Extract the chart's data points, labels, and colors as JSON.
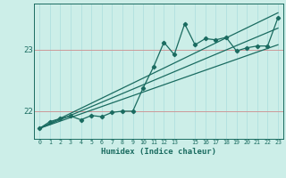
{
  "xlabel": "Humidex (Indice chaleur)",
  "bg_color": "#cceee8",
  "line_color": "#1a6b60",
  "grid_h_color": "#cc9999",
  "grid_v_color": "#aadddd",
  "xlim": [
    -0.5,
    23.5
  ],
  "ylim": [
    21.55,
    23.75
  ],
  "yticks": [
    22,
    23
  ],
  "xticks": [
    0,
    1,
    2,
    3,
    4,
    5,
    6,
    7,
    8,
    9,
    10,
    11,
    12,
    13,
    15,
    16,
    17,
    18,
    19,
    20,
    21,
    22,
    23
  ],
  "data_x": [
    0,
    1,
    2,
    3,
    4,
    5,
    6,
    7,
    8,
    9,
    10,
    11,
    12,
    13,
    14,
    15,
    16,
    17,
    18,
    19,
    20,
    21,
    22,
    23
  ],
  "data_y": [
    21.72,
    21.83,
    21.88,
    21.92,
    21.86,
    21.93,
    21.91,
    21.98,
    22.0,
    22.0,
    22.38,
    22.72,
    23.12,
    22.92,
    23.42,
    23.08,
    23.18,
    23.16,
    23.2,
    22.98,
    23.03,
    23.06,
    23.06,
    23.52
  ],
  "trend1_x": [
    0,
    23
  ],
  "trend1_y": [
    21.72,
    23.6
  ],
  "trend2_x": [
    0,
    23
  ],
  "trend2_y": [
    21.72,
    23.08
  ],
  "trend3_x": [
    0,
    23
  ],
  "trend3_y": [
    21.72,
    23.35
  ]
}
